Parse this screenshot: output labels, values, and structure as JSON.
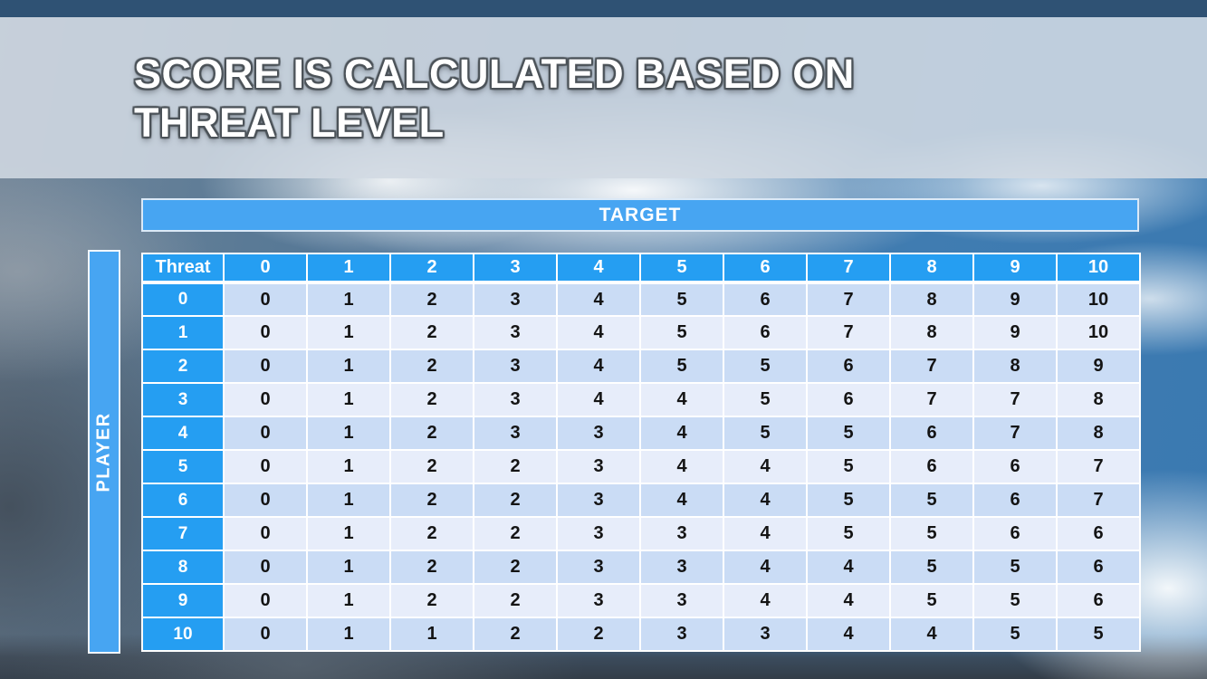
{
  "slide": {
    "title": {
      "line1": "SCORE IS CALCULATED BASED ON",
      "line2": "THREAT LEVEL"
    }
  },
  "matrix": {
    "target_label": "TARGET",
    "player_label": "PLAYER",
    "corner_label": "Threat",
    "column_headers": [
      "0",
      "1",
      "2",
      "3",
      "4",
      "5",
      "6",
      "7",
      "8",
      "9",
      "10"
    ],
    "row_headers": [
      "0",
      "1",
      "2",
      "3",
      "4",
      "5",
      "6",
      "7",
      "8",
      "9",
      "10"
    ],
    "rows": [
      [
        0,
        1,
        2,
        3,
        4,
        5,
        6,
        7,
        8,
        9,
        10
      ],
      [
        0,
        1,
        2,
        3,
        4,
        5,
        6,
        7,
        8,
        9,
        10
      ],
      [
        0,
        1,
        2,
        3,
        4,
        5,
        5,
        6,
        7,
        8,
        9
      ],
      [
        0,
        1,
        2,
        3,
        4,
        4,
        5,
        6,
        7,
        7,
        8
      ],
      [
        0,
        1,
        2,
        3,
        3,
        4,
        5,
        5,
        6,
        7,
        8
      ],
      [
        0,
        1,
        2,
        2,
        3,
        4,
        4,
        5,
        6,
        6,
        7
      ],
      [
        0,
        1,
        2,
        2,
        3,
        4,
        4,
        5,
        5,
        6,
        7
      ],
      [
        0,
        1,
        2,
        2,
        3,
        3,
        4,
        5,
        5,
        6,
        6
      ],
      [
        0,
        1,
        2,
        2,
        3,
        3,
        4,
        4,
        5,
        5,
        6
      ],
      [
        0,
        1,
        2,
        2,
        3,
        3,
        4,
        4,
        5,
        5,
        6
      ],
      [
        0,
        1,
        1,
        2,
        2,
        3,
        3,
        4,
        4,
        5,
        5
      ]
    ]
  },
  "colors": {
    "header_blue": "#259ef2",
    "bar_blue": "#47a5f2",
    "row_even": "#cadcf5",
    "row_odd": "#e7edfa",
    "cell_text": "#141414",
    "top_strip": "#2f5274",
    "banner": "#d1dae3",
    "title_text": "#ffffff",
    "title_outline": "#4b5258"
  }
}
